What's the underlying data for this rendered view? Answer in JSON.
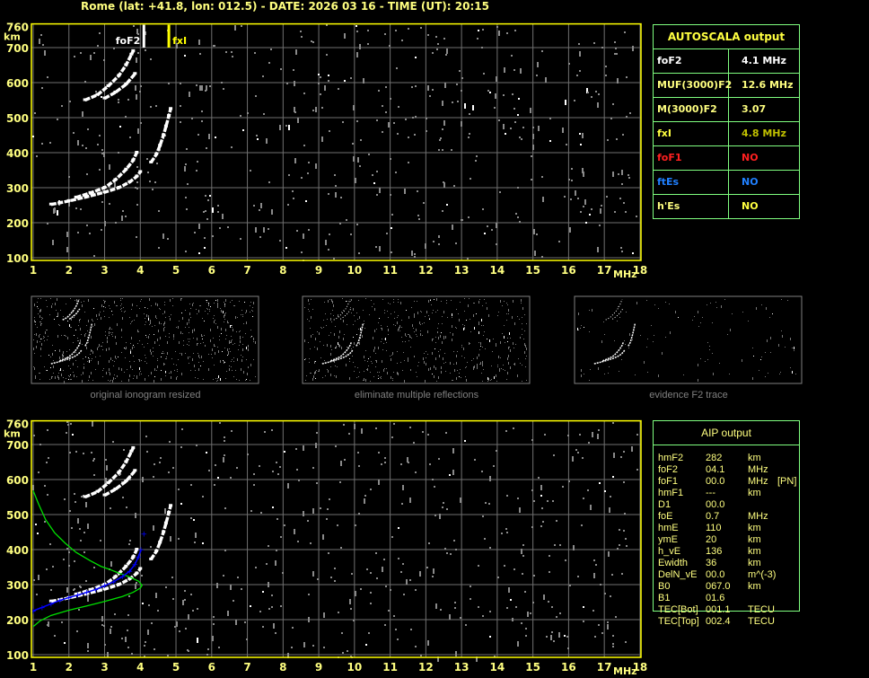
{
  "header": {
    "title": "Rome (lat: +41.8, lon: 012.5) - DATE: 2026 03 16 - TIME (UT): 20:15"
  },
  "autoscala": {
    "title": "AUTOSCALA output",
    "rows": [
      {
        "label": "foF2",
        "value": "4.1 MHz",
        "label_color": "#ffffff",
        "value_color": "#ffffff"
      },
      {
        "label": "MUF(3000)F2",
        "value": "12.6 MHz",
        "label_color": "#ffff80",
        "value_color": "#ffff80"
      },
      {
        "label": "M(3000)F2",
        "value": "3.07",
        "label_color": "#ffff80",
        "value_color": "#ffff80"
      },
      {
        "label": "fxI",
        "value": "4.8 MHz",
        "label_color": "#ffff40",
        "value_color": "#c0c000"
      },
      {
        "label": "foF1",
        "value": "NO",
        "label_color": "#ff2020",
        "value_color": "#ff2020"
      },
      {
        "label": "ftEs",
        "value": "NO",
        "label_color": "#2080ff",
        "value_color": "#2080ff"
      },
      {
        "label": "h'Es",
        "value": "NO",
        "label_color": "#ffff80",
        "value_color": "#ffff40"
      }
    ]
  },
  "aip": {
    "title": "AIP output",
    "rows": [
      {
        "name": "hmF2",
        "value": "282",
        "unit": "km",
        "note": ""
      },
      {
        "name": "foF2",
        "value": "04.1",
        "unit": "MHz",
        "note": ""
      },
      {
        "name": "foF1",
        "value": "00.0",
        "unit": "MHz",
        "note": "[PN]"
      },
      {
        "name": "hmF1",
        "value": "---",
        "unit": "km",
        "note": ""
      },
      {
        "name": "D1",
        "value": "00.0",
        "unit": "",
        "note": ""
      },
      {
        "name": "foE",
        "value": "0.7",
        "unit": "MHz",
        "note": ""
      },
      {
        "name": "hmE",
        "value": "110",
        "unit": "km",
        "note": ""
      },
      {
        "name": "ymE",
        "value": "20",
        "unit": "km",
        "note": ""
      },
      {
        "name": "h_vE",
        "value": "136",
        "unit": "km",
        "note": ""
      },
      {
        "name": "Ewidth",
        "value": "36",
        "unit": "km",
        "note": ""
      },
      {
        "name": "DelN_vE",
        "value": "00.0",
        "unit": "m^(-3)",
        "note": ""
      },
      {
        "name": "B0",
        "value": "067.0",
        "unit": "km",
        "note": ""
      },
      {
        "name": "B1",
        "value": "01.6",
        "unit": "",
        "note": ""
      },
      {
        "name": "TEC[Bot]",
        "value": "001.1",
        "unit": "TECU",
        "note": ""
      },
      {
        "name": "TEC[Top]",
        "value": "002.4",
        "unit": "TECU",
        "note": ""
      }
    ]
  },
  "thumbnails": [
    {
      "caption": "original ionogram resized"
    },
    {
      "caption": "eliminate multiple reflections"
    },
    {
      "caption": "evidence F2 trace"
    }
  ],
  "chart_data": [
    {
      "type": "scatter",
      "title": "",
      "xlabel": "MHz",
      "ylabel": "km",
      "xlim": [
        1,
        18
      ],
      "ylim": [
        100,
        760
      ],
      "xticks": [
        "1",
        "2",
        "3",
        "4",
        "5",
        "6",
        "7",
        "8",
        "9",
        "10",
        "11",
        "12",
        "13",
        "14",
        "15",
        "16",
        "17",
        "18"
      ],
      "yticks": [
        "100",
        "200",
        "300",
        "400",
        "500",
        "600",
        "700",
        "760"
      ],
      "grid": true,
      "markers": [
        {
          "label": "foF2",
          "x": 4.1,
          "color": "#ffffff"
        },
        {
          "label": "fxI",
          "x": 4.8,
          "color": "#ffff00"
        }
      ],
      "traces": [
        {
          "color": "#ffffff",
          "points": [
            [
              1.5,
              252
            ],
            [
              2,
              262
            ],
            [
              2.5,
              274
            ],
            [
              3,
              287
            ],
            [
              3.4,
              300
            ],
            [
              3.7,
              316
            ],
            [
              3.9,
              332
            ],
            [
              4.0,
              345
            ]
          ]
        },
        {
          "color": "#ffffff",
          "points": [
            [
              4.3,
              372
            ],
            [
              4.45,
              395
            ],
            [
              4.55,
              420
            ],
            [
              4.65,
              450
            ],
            [
              4.72,
              475
            ],
            [
              4.8,
              505
            ],
            [
              4.85,
              525
            ]
          ]
        },
        {
          "color": "#ffffff",
          "points": [
            [
              2.2,
              272
            ],
            [
              2.6,
              285
            ],
            [
              3,
              300
            ],
            [
              3.3,
              322
            ],
            [
              3.6,
              352
            ],
            [
              3.8,
              378
            ],
            [
              3.9,
              400
            ]
          ]
        },
        {
          "color": "#ffffff",
          "points": [
            [
              2.45,
              550
            ],
            [
              2.8,
              565
            ],
            [
              3.1,
              590
            ],
            [
              3.4,
              620
            ],
            [
              3.6,
              650
            ],
            [
              3.75,
              680
            ],
            [
              3.8,
              690
            ]
          ]
        },
        {
          "color": "#ffffff",
          "points": [
            [
              3.0,
              555
            ],
            [
              3.3,
              572
            ],
            [
              3.6,
              595
            ],
            [
              3.85,
              625
            ]
          ]
        }
      ]
    },
    {
      "type": "scatter",
      "title": "",
      "xlabel": "MHz",
      "ylabel": "km",
      "xlim": [
        1,
        18
      ],
      "ylim": [
        100,
        760
      ],
      "xticks": [
        "1",
        "2",
        "3",
        "4",
        "5",
        "6",
        "7",
        "8",
        "9",
        "10",
        "11",
        "12",
        "13",
        "14",
        "15",
        "16",
        "17",
        "18"
      ],
      "yticks": [
        "100",
        "200",
        "300",
        "400",
        "500",
        "600",
        "700",
        "760"
      ],
      "grid": true,
      "traces": [
        {
          "color": "#ffffff",
          "points": [
            [
              1.5,
              252
            ],
            [
              2,
              262
            ],
            [
              2.5,
              274
            ],
            [
              3,
              287
            ],
            [
              3.4,
              300
            ],
            [
              3.7,
              316
            ],
            [
              3.9,
              332
            ],
            [
              4.0,
              345
            ]
          ]
        },
        {
          "color": "#ffffff",
          "points": [
            [
              4.3,
              372
            ],
            [
              4.45,
              395
            ],
            [
              4.55,
              420
            ],
            [
              4.65,
              450
            ],
            [
              4.72,
              475
            ],
            [
              4.8,
              505
            ],
            [
              4.85,
              525
            ]
          ]
        },
        {
          "color": "#ffffff",
          "points": [
            [
              2.2,
              272
            ],
            [
              2.6,
              285
            ],
            [
              3,
              300
            ],
            [
              3.3,
              322
            ],
            [
              3.6,
              352
            ],
            [
              3.8,
              378
            ],
            [
              3.9,
              400
            ]
          ]
        },
        {
          "color": "#ffffff",
          "points": [
            [
              2.45,
              550
            ],
            [
              2.8,
              565
            ],
            [
              3.1,
              590
            ],
            [
              3.4,
              620
            ],
            [
              3.6,
              650
            ],
            [
              3.75,
              680
            ],
            [
              3.8,
              690
            ]
          ]
        },
        {
          "color": "#ffffff",
          "points": [
            [
              3.0,
              555
            ],
            [
              3.3,
              572
            ],
            [
              3.6,
              595
            ],
            [
              3.85,
              625
            ]
          ]
        }
      ],
      "fit_points": {
        "color": "#0000ff",
        "points": [
          [
            1,
            225
          ],
          [
            1.25,
            235
          ],
          [
            1.5,
            245
          ],
          [
            1.75,
            255
          ],
          [
            2,
            263
          ],
          [
            2.25,
            270
          ],
          [
            2.5,
            278
          ],
          [
            2.75,
            286
          ],
          [
            3,
            297
          ],
          [
            3.25,
            308
          ],
          [
            3.5,
            323
          ],
          [
            3.7,
            338
          ],
          [
            3.85,
            358
          ],
          [
            3.95,
            380
          ],
          [
            4.02,
            400
          ],
          [
            4.1,
            445
          ]
        ]
      },
      "profile": {
        "color": "#00e000",
        "points": [
          [
            1,
            180
          ],
          [
            1.2,
            197
          ],
          [
            1.5,
            212
          ],
          [
            2,
            227
          ],
          [
            2.5,
            239
          ],
          [
            3,
            252
          ],
          [
            3.5,
            266
          ],
          [
            3.8,
            278
          ],
          [
            4.0,
            290
          ],
          [
            4.05,
            298
          ],
          [
            3.95,
            310
          ],
          [
            3.7,
            322
          ],
          [
            3.4,
            333
          ],
          [
            3.1,
            345
          ],
          [
            2.9,
            352
          ],
          [
            2.6,
            368
          ],
          [
            2.2,
            392
          ],
          [
            1.9,
            418
          ],
          [
            1.6,
            448
          ],
          [
            1.35,
            485
          ],
          [
            1.15,
            530
          ],
          [
            1,
            568
          ]
        ]
      }
    }
  ]
}
